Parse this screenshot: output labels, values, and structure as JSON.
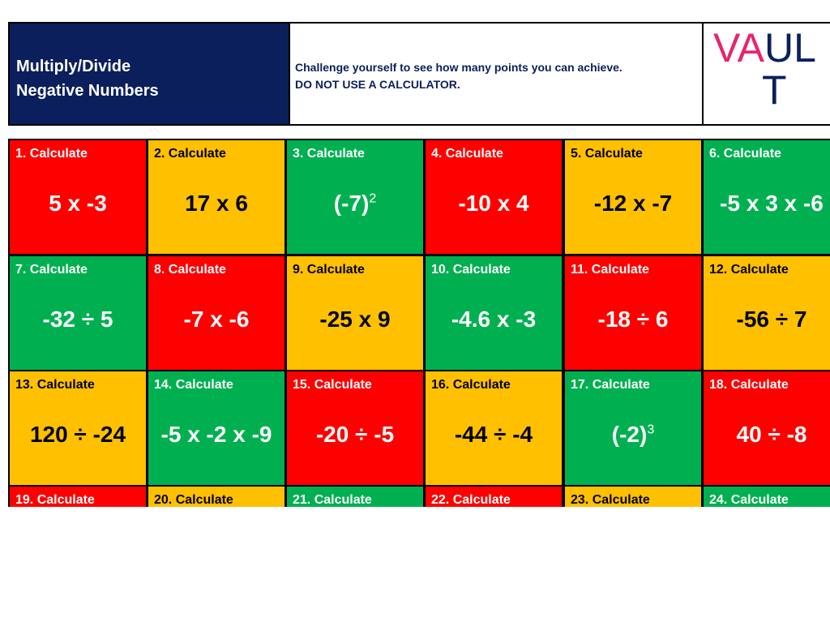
{
  "header": {
    "title_lines": [
      "Multiply/Divide",
      "Negative Numbers"
    ],
    "description_lines": [
      "Challenge yourself to see how many points you can achieve.",
      "DO NOT USE A CALCULATOR."
    ],
    "logo": [
      "VA",
      "UL",
      "T"
    ]
  },
  "cells": [
    {
      "label": "1. Calculate",
      "expr": "5 x -3",
      "color": "red"
    },
    {
      "label": "2. Calculate",
      "expr": "17 x 6",
      "color": "amber"
    },
    {
      "label": "3.  Calculate",
      "expr": "(-7)",
      "sup": "2",
      "color": "green"
    },
    {
      "label": "4. Calculate",
      "expr": "-10 x 4",
      "color": "red"
    },
    {
      "label": "5.  Calculate",
      "expr": "-12 x -7",
      "color": "amber"
    },
    {
      "label": "6.  Calculate",
      "expr": "-5 x 3 x -6",
      "color": "green"
    },
    {
      "label": "7.  Calculate",
      "expr": "-32 ÷ 5",
      "color": "green"
    },
    {
      "label": "8. Calculate",
      "expr": "-7 x -6",
      "color": "red"
    },
    {
      "label": "9. Calculate",
      "expr": "-25 x 9",
      "color": "amber"
    },
    {
      "label": "10.  Calculate",
      "expr": "-4.6 x -3",
      "color": "green"
    },
    {
      "label": "11.  Calculate",
      "expr": "-18 ÷ 6",
      "color": "red"
    },
    {
      "label": "12.  Calculate",
      "expr": "-56 ÷ 7",
      "color": "amber"
    },
    {
      "label": "13. Calculate",
      "expr": "120 ÷ -24",
      "color": "amber"
    },
    {
      "label": "14.  Calculate",
      "expr": "-5 x -2 x -9",
      "color": "green"
    },
    {
      "label": "15.  Calculate",
      "expr": "-20 ÷ -5",
      "color": "red"
    },
    {
      "label": "16.  Calculate",
      "expr": "-44 ÷ -4",
      "color": "amber"
    },
    {
      "label": "17.  Calculate",
      "expr": "(-2)",
      "sup": "3",
      "color": "green"
    },
    {
      "label": "18.  Calculate",
      "expr": "40 ÷ -8",
      "color": "red"
    },
    {
      "label": "19.  Calculate",
      "color": "red"
    },
    {
      "label": "20. Calculate",
      "color": "amber"
    },
    {
      "label": "21. Calculate",
      "color": "green"
    },
    {
      "label": "22.  Calculate",
      "color": "red"
    },
    {
      "label": "23. Calculate",
      "color": "amber"
    },
    {
      "label": "24. Calculate",
      "color": "green"
    }
  ]
}
